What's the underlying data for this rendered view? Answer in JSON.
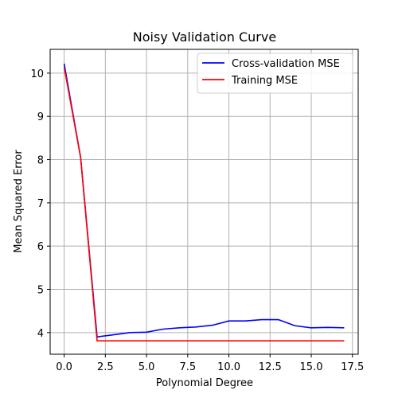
{
  "chart_data": {
    "type": "line",
    "title": "Noisy Validation Curve",
    "xlabel": "Polynomial Degree",
    "ylabel": "Mean Squared Error",
    "xlim": [
      -0.85,
      17.85
    ],
    "ylim": [
      3.5,
      10.55
    ],
    "xticks": [
      0,
      2.5,
      5,
      7.5,
      10,
      12.5,
      15,
      17.5
    ],
    "xtick_labels": [
      "0.0",
      "2.5",
      "5.0",
      "7.5",
      "10.0",
      "12.5",
      "15.0",
      "17.5"
    ],
    "yticks": [
      4,
      5,
      6,
      7,
      8,
      9,
      10
    ],
    "ytick_labels": [
      "4",
      "5",
      "6",
      "7",
      "8",
      "9",
      "10"
    ],
    "grid": true,
    "legend_position": "top-right",
    "x": [
      0,
      1,
      2,
      3,
      4,
      5,
      6,
      7,
      8,
      9,
      10,
      11,
      12,
      13,
      14,
      15,
      16,
      17
    ],
    "series": [
      {
        "name": "Cross-validation MSE",
        "color": "#0000ff",
        "values": [
          10.22,
          8.05,
          3.9,
          3.95,
          4.0,
          4.01,
          4.08,
          4.11,
          4.13,
          4.17,
          4.27,
          4.27,
          4.3,
          4.3,
          4.16,
          4.11,
          4.12,
          4.11
        ]
      },
      {
        "name": "Training MSE",
        "color": "#ff0000",
        "values": [
          10.14,
          8.05,
          3.81,
          3.81,
          3.81,
          3.81,
          3.81,
          3.81,
          3.81,
          3.81,
          3.81,
          3.81,
          3.81,
          3.81,
          3.81,
          3.81,
          3.81,
          3.81
        ]
      }
    ]
  }
}
